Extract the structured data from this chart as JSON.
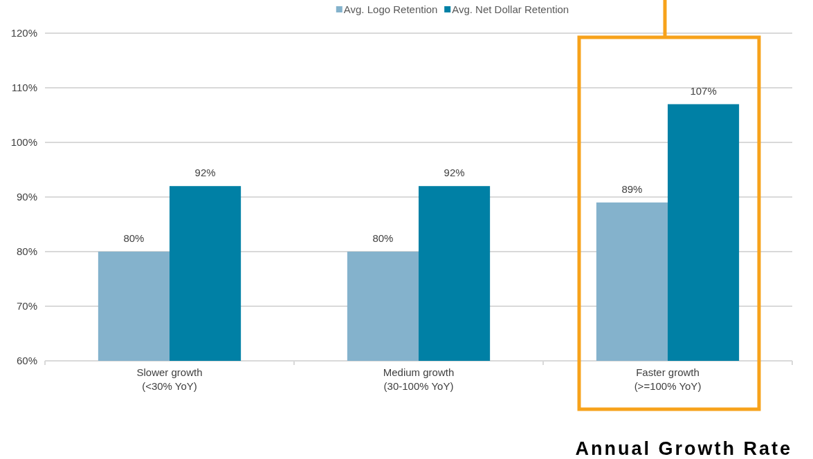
{
  "chart_data": {
    "type": "bar",
    "categories": [
      "Slower growth\n(<30% YoY)",
      "Medium growth\n(30-100% YoY)",
      "Faster growth\n(>=100% YoY)"
    ],
    "series": [
      {
        "name": "Avg. Logo Retention",
        "color": "#84b2cc",
        "values": [
          80,
          80,
          89
        ],
        "value_labels": [
          "80%",
          "80%",
          "89%"
        ]
      },
      {
        "name": "Avg. Net Dollar Retention",
        "color": "#0080a5",
        "values": [
          92,
          92,
          107
        ],
        "value_labels": [
          "92%",
          "92%",
          "107%"
        ]
      }
    ],
    "ylim": [
      60,
      120
    ],
    "yticks": [
      {
        "value": 60,
        "label": "60%"
      },
      {
        "value": 70,
        "label": "70%"
      },
      {
        "value": 80,
        "label": "80%"
      },
      {
        "value": 90,
        "label": "90%"
      },
      {
        "value": 100,
        "label": "100%"
      },
      {
        "value": 110,
        "label": "110%"
      },
      {
        "value": 120,
        "label": "120%"
      }
    ],
    "xlabel": "Annual Growth Rate",
    "bands": [
      {
        "axis": "x",
        "from": "Faster growth\n(>=100% YoY)",
        "to": "Faster growth\n(>=100% YoY)",
        "color": "#f7a21b"
      }
    ],
    "grid": true,
    "legend": "top"
  }
}
